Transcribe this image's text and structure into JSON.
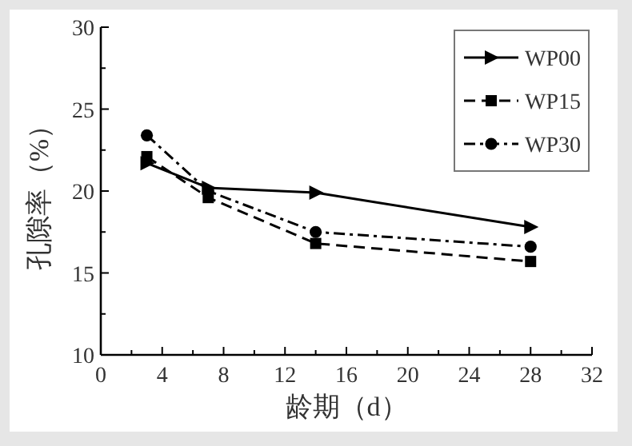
{
  "chart_data": {
    "type": "line",
    "xlabel": "龄期（d）",
    "ylabel": "孔隙率（%）",
    "x": [
      3,
      7,
      14,
      28
    ],
    "series": [
      {
        "name": "WP00",
        "color": "#000000",
        "values": [
          21.7,
          20.2,
          19.9,
          17.8
        ],
        "marker": "triangle",
        "line_style": "solid"
      },
      {
        "name": "WP15",
        "color": "#000000",
        "values": [
          22.1,
          19.6,
          16.8,
          15.7
        ],
        "marker": "square",
        "line_style": "dashed"
      },
      {
        "name": "WP30",
        "color": "#000000",
        "values": [
          23.4,
          20.0,
          17.5,
          16.6
        ],
        "marker": "circle",
        "line_style": "dashdot"
      }
    ],
    "xlim": [
      0,
      32
    ],
    "xticks": [
      0,
      4,
      8,
      12,
      16,
      20,
      24,
      28,
      32
    ],
    "ylim": [
      10,
      30
    ],
    "yticks": [
      10,
      15,
      20,
      25,
      30
    ],
    "grid": false,
    "legend": "top right"
  }
}
